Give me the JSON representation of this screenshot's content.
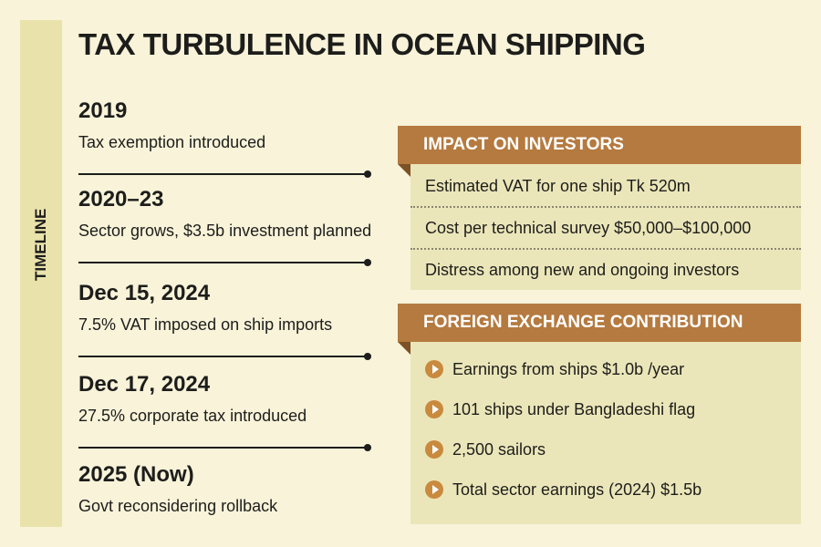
{
  "header": {
    "title": "TAX TURBULENCE IN OCEAN SHIPPING"
  },
  "sidebar": {
    "label": "TIMELINE"
  },
  "timeline": [
    {
      "year": "2019",
      "text": "Tax exemption introduced"
    },
    {
      "year": "2020–23",
      "text": "Sector grows, $3.5b investment planned"
    },
    {
      "year": "Dec 15, 2024",
      "text": "7.5% VAT imposed on ship imports"
    },
    {
      "year": "Dec 17, 2024",
      "text": "27.5% corporate tax introduced"
    },
    {
      "year": "2025 (Now)",
      "text": "Govt reconsidering rollback"
    }
  ],
  "impact": {
    "title": "IMPACT ON INVESTORS",
    "items": [
      "Estimated VAT for one ship Tk 520m",
      "Cost per technical survey $50,000–$100,000",
      "Distress among new and ongoing investors"
    ]
  },
  "forex": {
    "title": "FOREIGN EXCHANGE CONTRIBUTION",
    "items": [
      "Earnings from ships $1.0b /year",
      "101 ships under Bangladeshi flag",
      "2,500 sailors",
      "Total sector earnings (2024) $1.5b"
    ]
  }
}
